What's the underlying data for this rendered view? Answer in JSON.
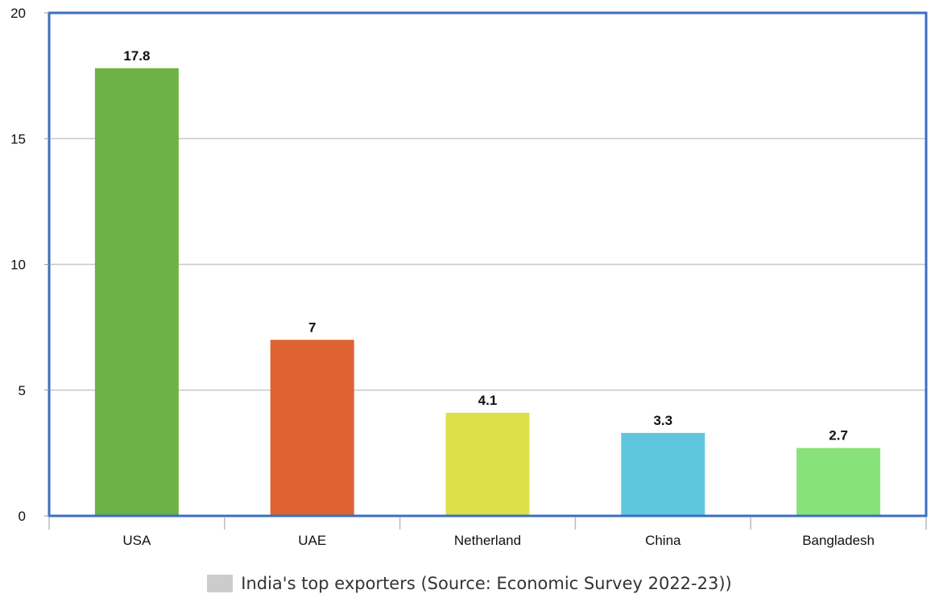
{
  "chart_data": {
    "type": "bar",
    "categories": [
      "USA",
      "UAE",
      "Netherland",
      "China",
      "Bangladesh"
    ],
    "values": [
      17.8,
      7,
      4.1,
      3.3,
      2.7
    ],
    "value_labels": [
      "17.8",
      "7",
      "4.1",
      "3.3",
      "2.7"
    ],
    "bar_colors": [
      "#6db246",
      "#df6233",
      "#dde048",
      "#60c6e0",
      "#88e27a"
    ],
    "yticks": [
      0,
      5,
      10,
      15,
      20
    ],
    "ylim": [
      0,
      20
    ],
    "grid": true,
    "frame_color": "#3a6fbf",
    "grid_color": "#c8c8c8",
    "legend": {
      "label": "India's top exporters (Source: Economic Survey 2022-23))",
      "swatch_color": "#cccccc",
      "position": "bottom-center"
    }
  }
}
